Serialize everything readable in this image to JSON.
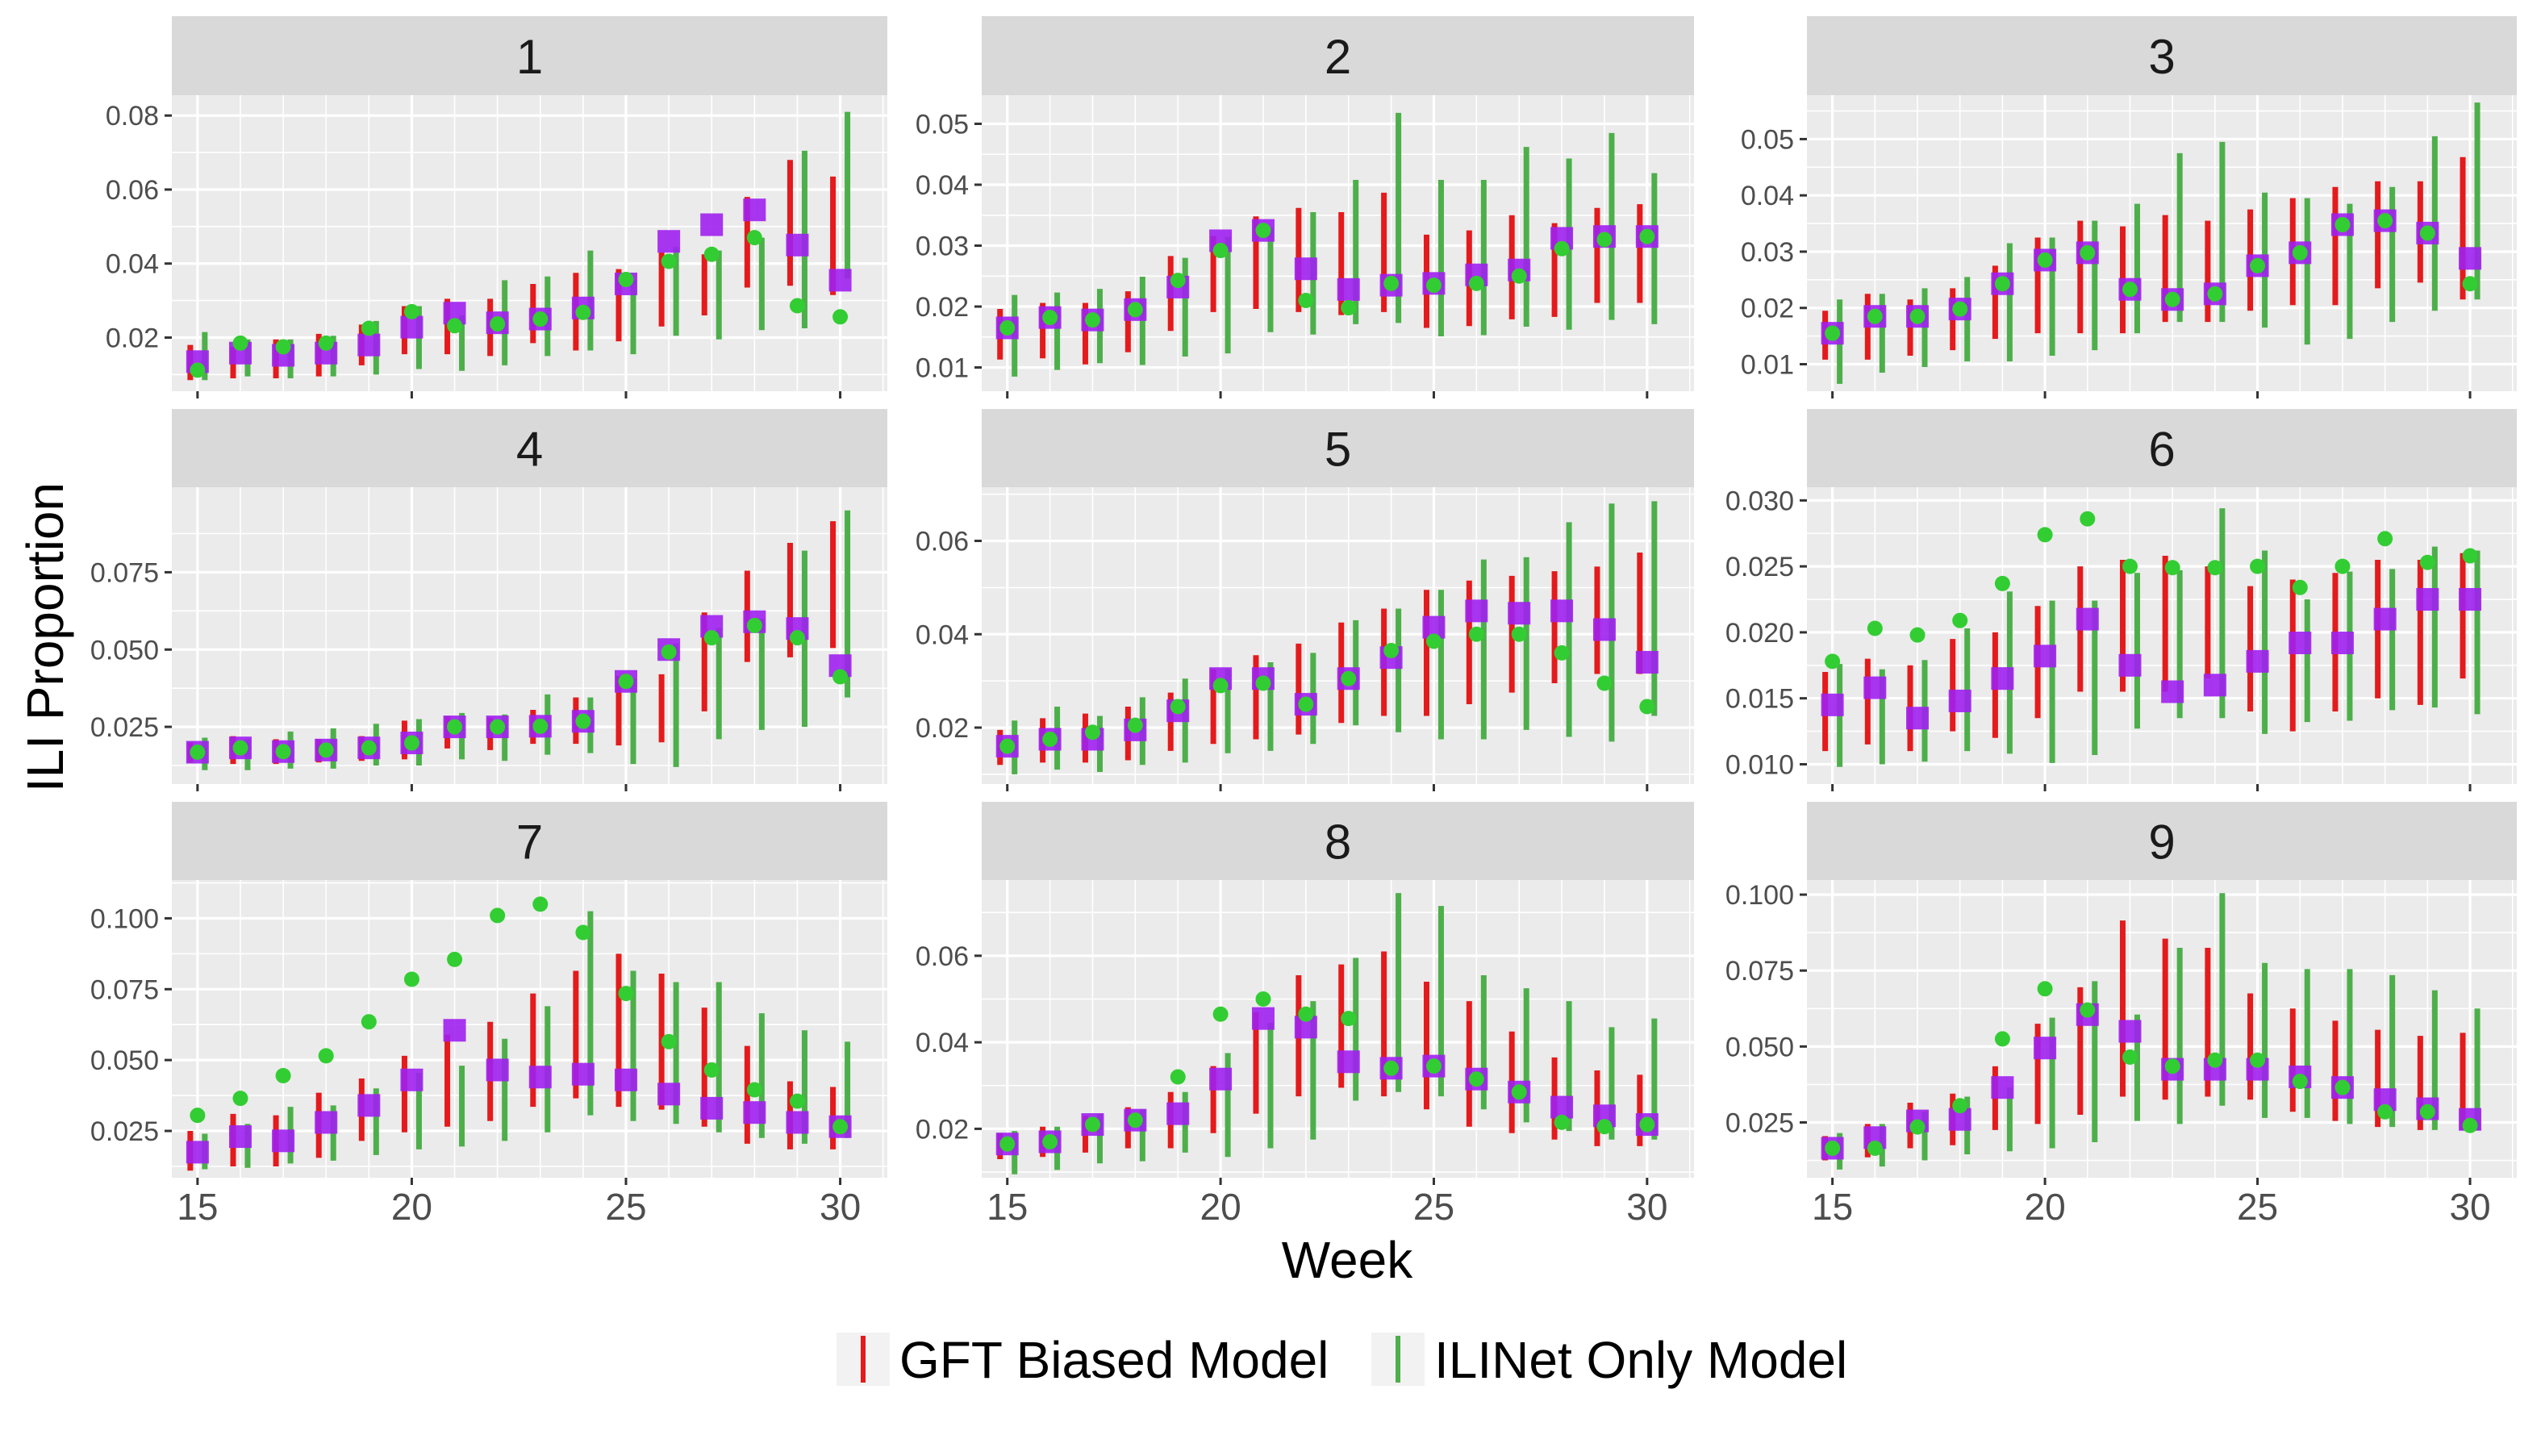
{
  "figure": {
    "xlabel": "Week",
    "ylabel": "ILI Proportion",
    "legend_position": "bottom"
  },
  "legend": [
    {
      "label": "GFT Biased Model",
      "color": "#E41A1C"
    },
    {
      "label": "ILINet Only Model",
      "color": "#4DAF4A"
    }
  ],
  "colors": {
    "gft": "#E41A1C",
    "ilinet": "#4DAF4A",
    "observed_square": "#A020F0",
    "observed_point": "#32CD32",
    "panel_bg": "#EBEBEB",
    "strip_bg": "#D9D9D9",
    "grid": "#FFFFFF"
  },
  "chart_data": [
    {
      "panel": "1",
      "type": "interval",
      "xlim": [
        14.4,
        31.1
      ],
      "x_ticks": [
        15,
        20,
        25,
        30
      ],
      "ylim": [
        0.0055,
        0.0855
      ],
      "y_ticks": [
        0.02,
        0.04,
        0.06,
        0.08
      ],
      "y_tick_labels": [
        "0.02",
        "0.04",
        "0.06",
        "0.08"
      ],
      "squares": [
        0.0135,
        0.0158,
        0.0152,
        0.0158,
        0.018,
        0.0228,
        0.0266,
        0.024,
        0.025,
        0.028,
        0.0345,
        0.046,
        0.0505,
        0.0545,
        0.045,
        0.0355
      ],
      "points": [
        0.0112,
        0.0185,
        0.0175,
        0.0185,
        0.0225,
        0.027,
        0.0232,
        0.0237,
        0.025,
        0.0268,
        0.0357,
        0.0406,
        0.0425,
        0.047,
        0.0286,
        0.0256
      ],
      "gft_low": [
        0.0085,
        0.009,
        0.009,
        0.0095,
        0.0125,
        0.0155,
        0.0155,
        0.015,
        0.0185,
        0.0165,
        0.019,
        0.023,
        0.026,
        0.0335,
        0.034,
        0.0315
      ],
      "gft_high": [
        0.018,
        0.0175,
        0.0195,
        0.021,
        0.0235,
        0.0285,
        0.0305,
        0.0305,
        0.0345,
        0.0375,
        0.0385,
        0.043,
        0.0425,
        0.058,
        0.068,
        0.0635
      ],
      "ili_low": [
        0.0085,
        0.0095,
        0.009,
        0.0095,
        0.01,
        0.0115,
        0.011,
        0.0125,
        0.015,
        0.0165,
        0.0155,
        0.0205,
        0.0195,
        0.022,
        0.0225,
        0.036
      ],
      "ili_high": [
        0.0215,
        0.0195,
        0.0195,
        0.0205,
        0.0245,
        0.0285,
        0.026,
        0.0355,
        0.0365,
        0.0435,
        0.0355,
        0.0445,
        0.0435,
        0.047,
        0.0705,
        0.081
      ]
    },
    {
      "panel": "2",
      "type": "interval",
      "xlim": [
        14.4,
        31.1
      ],
      "x_ticks": [
        15,
        20,
        25,
        30
      ],
      "ylim": [
        0.0061,
        0.0547
      ],
      "y_ticks": [
        0.01,
        0.02,
        0.03,
        0.04,
        0.05
      ],
      "y_tick_labels": [
        "0.01",
        "0.02",
        "0.03",
        "0.04",
        "0.05"
      ],
      "squares": [
        0.0165,
        0.0182,
        0.0178,
        0.0195,
        0.0232,
        0.0308,
        0.0325,
        0.0262,
        0.0228,
        0.0235,
        0.0238,
        0.0252,
        0.026,
        0.0312,
        0.0315,
        0.0315
      ],
      "points": [
        0.0165,
        0.0182,
        0.0178,
        0.0195,
        0.0243,
        0.0292,
        0.0325,
        0.021,
        0.0198,
        0.0238,
        0.0235,
        0.0238,
        0.025,
        0.0295,
        0.031,
        0.0315
      ],
      "gft_low": [
        0.0113,
        0.0115,
        0.0105,
        0.0125,
        0.016,
        0.0191,
        0.0196,
        0.0191,
        0.0186,
        0.0191,
        0.0165,
        0.0168,
        0.0179,
        0.0183,
        0.0206,
        0.0206
      ],
      "gft_high": [
        0.0196,
        0.0206,
        0.0206,
        0.0225,
        0.0283,
        0.0316,
        0.0348,
        0.0362,
        0.0355,
        0.0387,
        0.0318,
        0.0325,
        0.035,
        0.0337,
        0.0362,
        0.0368
      ],
      "ili_low": [
        0.0085,
        0.0096,
        0.0107,
        0.0104,
        0.0118,
        0.0123,
        0.0158,
        0.0154,
        0.0171,
        0.0173,
        0.0151,
        0.0153,
        0.0167,
        0.0162,
        0.0178,
        0.0171
      ],
      "ili_high": [
        0.0219,
        0.0223,
        0.0229,
        0.0249,
        0.028,
        0.0314,
        0.0329,
        0.0355,
        0.0408,
        0.0518,
        0.0408,
        0.0408,
        0.0462,
        0.0443,
        0.0485,
        0.0419
      ]
    },
    {
      "panel": "3",
      "type": "interval",
      "xlim": [
        14.4,
        31.1
      ],
      "x_ticks": [
        15,
        20,
        25,
        30
      ],
      "ylim": [
        0.0052,
        0.0578
      ],
      "y_ticks": [
        0.01,
        0.02,
        0.03,
        0.04,
        0.05
      ],
      "y_tick_labels": [
        "0.01",
        "0.02",
        "0.03",
        "0.04",
        "0.05"
      ],
      "squares": [
        0.0155,
        0.0185,
        0.0185,
        0.0198,
        0.0243,
        0.0285,
        0.0298,
        0.0233,
        0.0215,
        0.0225,
        0.0275,
        0.0298,
        0.0348,
        0.0355,
        0.0333,
        0.0288
      ],
      "points": [
        0.0155,
        0.0185,
        0.0185,
        0.0198,
        0.0243,
        0.0285,
        0.0298,
        0.0233,
        0.0215,
        0.0225,
        0.0275,
        0.0298,
        0.0348,
        0.0355,
        0.0333,
        0.0243
      ],
      "gft_low": [
        0.0108,
        0.0108,
        0.0115,
        0.0125,
        0.0145,
        0.0155,
        0.0155,
        0.0155,
        0.0175,
        0.0175,
        0.0195,
        0.0205,
        0.0205,
        0.0235,
        0.0245,
        0.0215
      ],
      "gft_high": [
        0.0195,
        0.0225,
        0.0215,
        0.0235,
        0.0275,
        0.0325,
        0.0355,
        0.0345,
        0.0365,
        0.0355,
        0.0375,
        0.0395,
        0.0415,
        0.0425,
        0.0425,
        0.0468
      ],
      "ili_low": [
        0.0065,
        0.0085,
        0.0095,
        0.0105,
        0.0105,
        0.0115,
        0.0125,
        0.0155,
        0.0175,
        0.0175,
        0.0165,
        0.0135,
        0.0145,
        0.0175,
        0.0195,
        0.0215
      ],
      "ili_high": [
        0.0215,
        0.0225,
        0.0235,
        0.0255,
        0.0315,
        0.0325,
        0.0355,
        0.0385,
        0.0475,
        0.0495,
        0.0405,
        0.0395,
        0.0385,
        0.0415,
        0.0505,
        0.0565
      ]
    },
    {
      "panel": "4",
      "type": "interval",
      "xlim": [
        14.4,
        31.1
      ],
      "x_ticks": [
        15,
        20,
        25,
        30
      ],
      "ylim": [
        0.0065,
        0.1025
      ],
      "y_ticks": [
        0.025,
        0.05,
        0.075
      ],
      "y_tick_labels": [
        "0.025",
        "0.050",
        "0.075"
      ],
      "squares": [
        0.0168,
        0.0182,
        0.017,
        0.0175,
        0.0182,
        0.0198,
        0.025,
        0.025,
        0.0252,
        0.0268,
        0.0397,
        0.05,
        0.0575,
        0.059,
        0.0568,
        0.0448
      ],
      "points": [
        0.0168,
        0.0182,
        0.017,
        0.0175,
        0.0182,
        0.0198,
        0.025,
        0.025,
        0.0252,
        0.0268,
        0.0397,
        0.0492,
        0.0538,
        0.0578,
        0.0538,
        0.0412
      ],
      "gft_low": [
        0.0135,
        0.013,
        0.013,
        0.0135,
        0.014,
        0.0145,
        0.018,
        0.0175,
        0.0195,
        0.0195,
        0.019,
        0.02,
        0.03,
        0.046,
        0.0475,
        0.0505
      ],
      "gft_high": [
        0.02,
        0.022,
        0.021,
        0.021,
        0.022,
        0.027,
        0.0285,
        0.028,
        0.0305,
        0.0345,
        0.0415,
        0.042,
        0.062,
        0.0755,
        0.0845,
        0.0915
      ],
      "ili_low": [
        0.011,
        0.011,
        0.0115,
        0.0115,
        0.0125,
        0.0125,
        0.0145,
        0.014,
        0.016,
        0.0165,
        0.013,
        0.012,
        0.021,
        0.024,
        0.025,
        0.0345
      ],
      "ili_high": [
        0.0215,
        0.021,
        0.0235,
        0.0245,
        0.026,
        0.0275,
        0.0295,
        0.029,
        0.0355,
        0.0345,
        0.0405,
        0.052,
        0.057,
        0.06,
        0.082,
        0.095
      ]
    },
    {
      "panel": "5",
      "type": "interval",
      "xlim": [
        14.4,
        31.1
      ],
      "x_ticks": [
        15,
        20,
        25,
        30
      ],
      "ylim": [
        0.0079,
        0.0715
      ],
      "y_ticks": [
        0.02,
        0.04,
        0.06
      ],
      "y_tick_labels": [
        "0.02",
        "0.04",
        "0.06"
      ],
      "squares": [
        0.016,
        0.0175,
        0.0175,
        0.0195,
        0.0236,
        0.0305,
        0.0305,
        0.025,
        0.0305,
        0.035,
        0.0415,
        0.045,
        0.0445,
        0.045,
        0.041,
        0.034
      ],
      "points": [
        0.016,
        0.0175,
        0.019,
        0.0205,
        0.0245,
        0.029,
        0.0295,
        0.025,
        0.0305,
        0.0365,
        0.0385,
        0.04,
        0.04,
        0.036,
        0.0295,
        0.0245
      ],
      "gft_low": [
        0.012,
        0.0125,
        0.0125,
        0.013,
        0.015,
        0.0165,
        0.0175,
        0.0185,
        0.021,
        0.0225,
        0.0225,
        0.025,
        0.0275,
        0.0295,
        0.0315,
        0.0315
      ],
      "gft_high": [
        0.0195,
        0.022,
        0.023,
        0.0245,
        0.0275,
        0.0325,
        0.0355,
        0.038,
        0.0425,
        0.0455,
        0.0495,
        0.0515,
        0.0525,
        0.0535,
        0.0545,
        0.0575
      ],
      "ili_low": [
        0.01,
        0.011,
        0.0105,
        0.012,
        0.0125,
        0.0145,
        0.015,
        0.0165,
        0.0205,
        0.019,
        0.0175,
        0.0175,
        0.0195,
        0.018,
        0.017,
        0.0225
      ],
      "ili_high": [
        0.0215,
        0.0245,
        0.0225,
        0.0265,
        0.0305,
        0.0325,
        0.034,
        0.036,
        0.043,
        0.0455,
        0.0495,
        0.056,
        0.0565,
        0.064,
        0.068,
        0.0685
      ]
    },
    {
      "panel": "6",
      "type": "interval",
      "xlim": [
        14.4,
        31.1
      ],
      "x_ticks": [
        15,
        20,
        25,
        30
      ],
      "ylim": [
        0.0085,
        0.031
      ],
      "y_ticks": [
        0.01,
        0.015,
        0.02,
        0.025,
        0.03
      ],
      "y_tick_labels": [
        "0.010",
        "0.015",
        "0.020",
        "0.025",
        "0.030"
      ],
      "squares": [
        0.0145,
        0.0158,
        0.0135,
        0.0148,
        0.0165,
        0.0182,
        0.021,
        0.0175,
        0.0155,
        0.016,
        0.0178,
        0.0192,
        0.0192,
        0.021,
        0.0225,
        0.0225
      ],
      "points": [
        0.0178,
        0.0203,
        0.0198,
        0.0209,
        0.0237,
        0.0274,
        0.0286,
        0.025,
        0.0249,
        0.0249,
        0.025,
        0.0234,
        0.025,
        0.0271,
        0.0253,
        0.0258
      ],
      "gft_low": [
        0.011,
        0.0115,
        0.011,
        0.0125,
        0.012,
        0.0135,
        0.0155,
        0.0155,
        0.0155,
        0.0165,
        0.014,
        0.0125,
        0.014,
        0.015,
        0.0145,
        0.0165
      ],
      "gft_high": [
        0.017,
        0.018,
        0.0175,
        0.0195,
        0.02,
        0.022,
        0.025,
        0.0255,
        0.0258,
        0.025,
        0.0235,
        0.024,
        0.0245,
        0.0255,
        0.0255,
        0.026
      ],
      "ili_low": [
        0.0098,
        0.01,
        0.0102,
        0.011,
        0.0108,
        0.0101,
        0.0107,
        0.0127,
        0.0135,
        0.0135,
        0.0123,
        0.0132,
        0.0133,
        0.0141,
        0.0143,
        0.0138
      ],
      "ili_high": [
        0.0176,
        0.0172,
        0.0179,
        0.0203,
        0.0231,
        0.0224,
        0.0224,
        0.0245,
        0.0247,
        0.0294,
        0.0262,
        0.0225,
        0.0246,
        0.0248,
        0.0265,
        0.0262
      ]
    },
    {
      "panel": "7",
      "type": "interval",
      "xlim": [
        14.4,
        31.1
      ],
      "x_ticks": [
        15,
        20,
        25,
        30
      ],
      "ylim": [
        0.0085,
        0.1135
      ],
      "y_ticks": [
        0.025,
        0.05,
        0.075,
        0.1
      ],
      "y_tick_labels": [
        "0.025",
        "0.050",
        "0.075",
        "0.100"
      ],
      "squares": [
        0.0175,
        0.023,
        0.0215,
        0.028,
        0.034,
        0.043,
        0.0605,
        0.0465,
        0.044,
        0.045,
        0.043,
        0.038,
        0.033,
        0.0315,
        0.028,
        0.0265
      ],
      "points": [
        0.0305,
        0.0365,
        0.0445,
        0.0515,
        0.0635,
        0.0785,
        0.0855,
        0.101,
        0.105,
        0.095,
        0.0735,
        0.0565,
        0.0465,
        0.0395,
        0.0355,
        0.0265
      ],
      "gft_low": [
        0.011,
        0.0125,
        0.0125,
        0.0155,
        0.0215,
        0.0245,
        0.0265,
        0.0285,
        0.0335,
        0.0365,
        0.0335,
        0.0325,
        0.0265,
        0.0205,
        0.0185,
        0.0185
      ],
      "gft_high": [
        0.025,
        0.031,
        0.0305,
        0.0385,
        0.0435,
        0.0515,
        0.059,
        0.0635,
        0.0735,
        0.0815,
        0.0875,
        0.0805,
        0.0685,
        0.055,
        0.0425,
        0.0405
      ],
      "ili_low": [
        0.0115,
        0.012,
        0.0135,
        0.0145,
        0.0165,
        0.0185,
        0.0195,
        0.0215,
        0.0245,
        0.0305,
        0.0285,
        0.0275,
        0.0245,
        0.0225,
        0.0205,
        0.0225
      ],
      "ili_high": [
        0.024,
        0.0275,
        0.0335,
        0.034,
        0.04,
        0.0455,
        0.048,
        0.0575,
        0.069,
        0.1025,
        0.0815,
        0.0775,
        0.0775,
        0.0665,
        0.0605,
        0.0565
      ]
    },
    {
      "panel": "8",
      "type": "interval",
      "xlim": [
        14.4,
        31.1
      ],
      "x_ticks": [
        15,
        20,
        25,
        30
      ],
      "ylim": [
        0.0087,
        0.0775
      ],
      "y_ticks": [
        0.02,
        0.04,
        0.06
      ],
      "y_tick_labels": [
        "0.02",
        "0.04",
        "0.06"
      ],
      "squares": [
        0.0165,
        0.017,
        0.021,
        0.022,
        0.0235,
        0.0315,
        0.0455,
        0.0435,
        0.0355,
        0.034,
        0.0345,
        0.0315,
        0.0285,
        0.025,
        0.023,
        0.021
      ],
      "points": [
        0.0165,
        0.017,
        0.021,
        0.022,
        0.032,
        0.0465,
        0.05,
        0.0465,
        0.0455,
        0.034,
        0.0345,
        0.0315,
        0.0285,
        0.0215,
        0.0205,
        0.021
      ],
      "gft_low": [
        0.013,
        0.0135,
        0.0145,
        0.0155,
        0.0155,
        0.019,
        0.0235,
        0.0275,
        0.0295,
        0.0275,
        0.0245,
        0.0205,
        0.019,
        0.0175,
        0.016,
        0.016
      ],
      "gft_high": [
        0.019,
        0.0205,
        0.023,
        0.025,
        0.0285,
        0.0345,
        0.047,
        0.0555,
        0.058,
        0.061,
        0.054,
        0.0495,
        0.0425,
        0.0365,
        0.0335,
        0.0325
      ],
      "ili_low": [
        0.0095,
        0.0105,
        0.012,
        0.0125,
        0.0145,
        0.0135,
        0.0155,
        0.0175,
        0.0265,
        0.0285,
        0.0275,
        0.0245,
        0.0215,
        0.0195,
        0.0175,
        0.0175
      ],
      "ili_high": [
        0.0195,
        0.0205,
        0.0235,
        0.0245,
        0.0285,
        0.0375,
        0.0445,
        0.0495,
        0.0595,
        0.0745,
        0.0715,
        0.0555,
        0.0525,
        0.0495,
        0.0435,
        0.0455
      ]
    },
    {
      "panel": "9",
      "type": "interval",
      "xlim": [
        14.4,
        31.1
      ],
      "x_ticks": [
        15,
        20,
        25,
        30
      ],
      "ylim": [
        0.0068,
        0.1048
      ],
      "y_ticks": [
        0.025,
        0.05,
        0.075,
        0.1
      ],
      "y_tick_labels": [
        "0.025",
        "0.050",
        "0.075",
        "0.100"
      ],
      "squares": [
        0.0165,
        0.02,
        0.0255,
        0.026,
        0.0365,
        0.0495,
        0.0605,
        0.055,
        0.0425,
        0.0425,
        0.0425,
        0.04,
        0.0365,
        0.0325,
        0.0295,
        0.026
      ],
      "points": [
        0.0165,
        0.0165,
        0.0235,
        0.0305,
        0.0525,
        0.069,
        0.062,
        0.0465,
        0.0435,
        0.0455,
        0.0455,
        0.0385,
        0.0365,
        0.0285,
        0.0285,
        0.024
      ],
      "gft_low": [
        0.0125,
        0.0135,
        0.0165,
        0.0175,
        0.0225,
        0.0245,
        0.0275,
        0.0335,
        0.0325,
        0.0335,
        0.0325,
        0.0285,
        0.0255,
        0.0235,
        0.0225,
        0.0225
      ],
      "gft_high": [
        0.0205,
        0.0245,
        0.0315,
        0.0345,
        0.0435,
        0.0575,
        0.0695,
        0.0915,
        0.0855,
        0.0825,
        0.0675,
        0.0625,
        0.0585,
        0.0555,
        0.0535,
        0.0545
      ],
      "ili_low": [
        0.0095,
        0.0105,
        0.0125,
        0.0145,
        0.0155,
        0.0165,
        0.0185,
        0.0255,
        0.0245,
        0.0305,
        0.0265,
        0.0265,
        0.0245,
        0.0235,
        0.0225,
        0.0225
      ],
      "ili_high": [
        0.0215,
        0.0245,
        0.0285,
        0.0335,
        0.0365,
        0.0595,
        0.0715,
        0.0605,
        0.0825,
        0.1005,
        0.0775,
        0.0755,
        0.0755,
        0.0735,
        0.0685,
        0.0625
      ]
    }
  ]
}
